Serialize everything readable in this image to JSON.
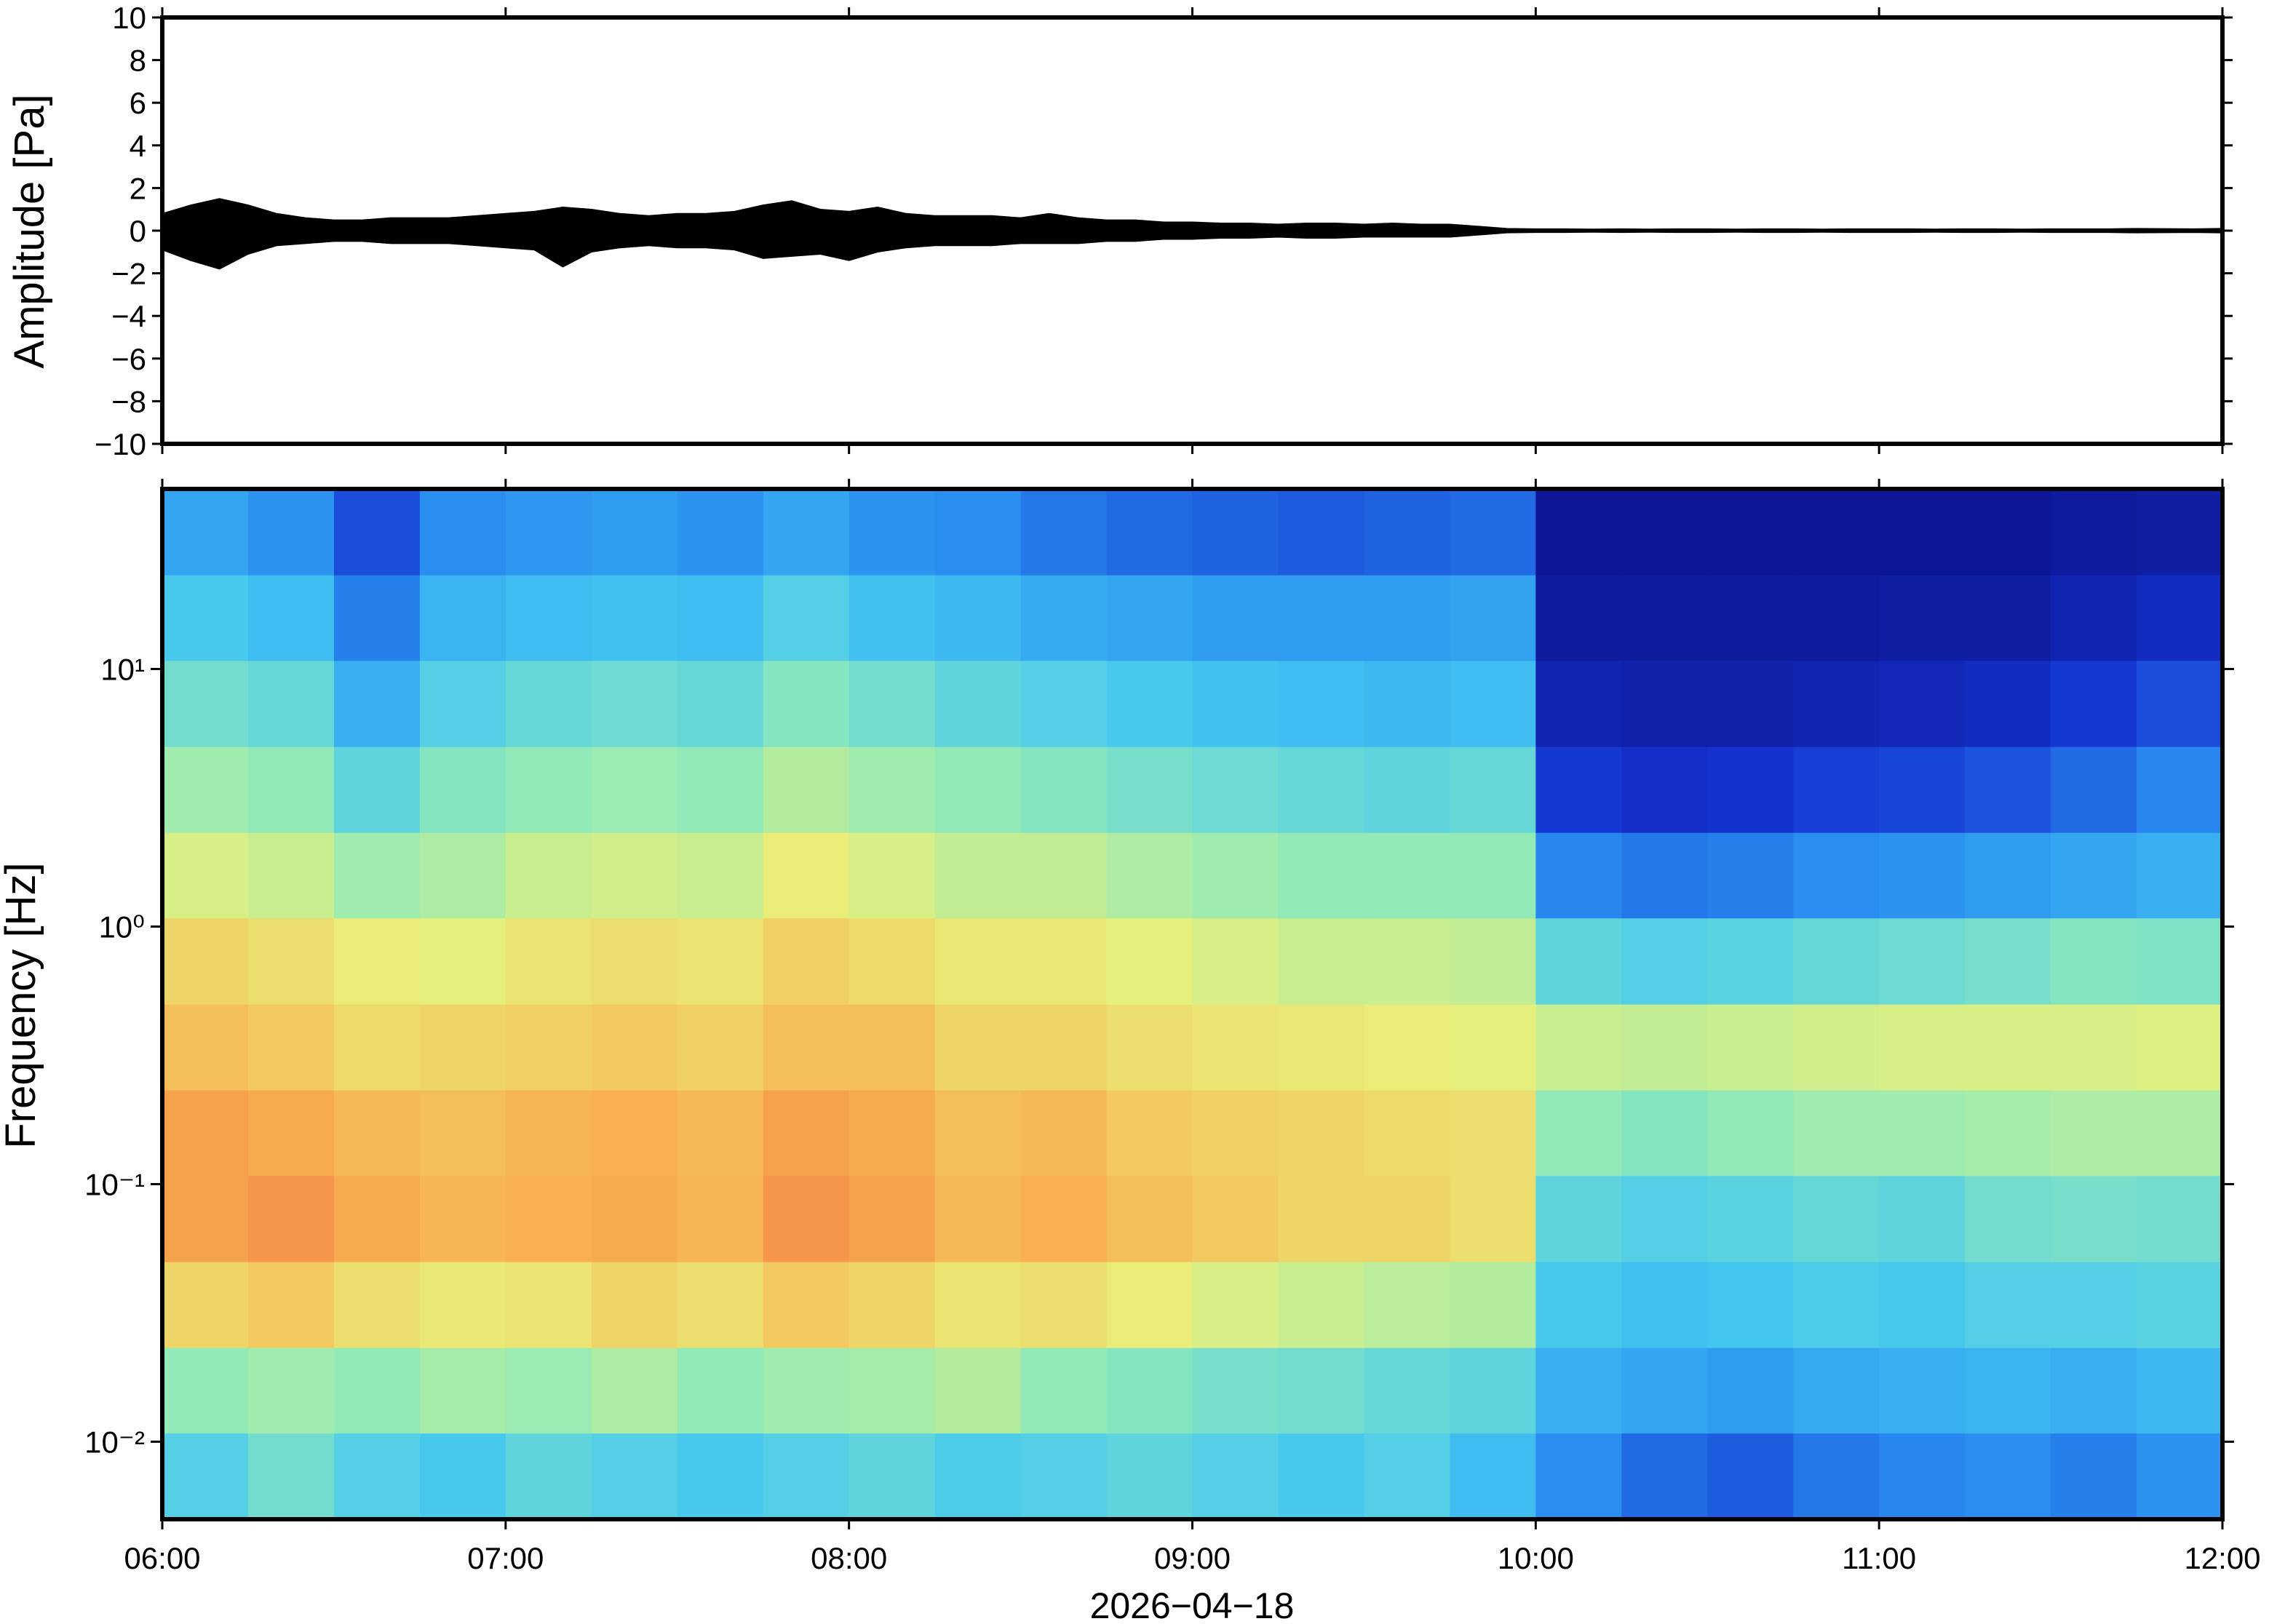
{
  "chart_data": [
    {
      "type": "area",
      "ylabel": "Amplitude [Pa]",
      "color": "#000000",
      "x": [
        0,
        5,
        10,
        15,
        20,
        25,
        30,
        35,
        40,
        45,
        50,
        55,
        60,
        65,
        70,
        75,
        80,
        85,
        90,
        95,
        100,
        105,
        110,
        115,
        120,
        125,
        130,
        135,
        140,
        145,
        150,
        155,
        160,
        165,
        170,
        175,
        180,
        185,
        190,
        195,
        200,
        205,
        210,
        215,
        220,
        225,
        230,
        235,
        240,
        245,
        250,
        255,
        260,
        265,
        270,
        275,
        280,
        285,
        290,
        295,
        300,
        305,
        310,
        315,
        320,
        325,
        330,
        335,
        340,
        345,
        350,
        355,
        360
      ],
      "series": [
        {
          "color": "#000000",
          "values": [
            0.8,
            1.2,
            1.5,
            1.2,
            0.8,
            0.6,
            0.5,
            0.5,
            0.6,
            0.6,
            0.6,
            0.7,
            0.8,
            0.9,
            1.1,
            1.0,
            0.8,
            0.7,
            0.8,
            0.8,
            0.9,
            1.2,
            1.4,
            1.0,
            0.9,
            1.1,
            0.8,
            0.7,
            0.7,
            0.7,
            0.6,
            0.8,
            0.6,
            0.5,
            0.5,
            0.4,
            0.4,
            0.35,
            0.35,
            0.3,
            0.35,
            0.35,
            0.3,
            0.35,
            0.3,
            0.3,
            0.2,
            0.1,
            0.08,
            0.08,
            0.07,
            0.08,
            0.07,
            0.08,
            0.08,
            0.07,
            0.08,
            0.08,
            0.07,
            0.08,
            0.08,
            0.08,
            0.07,
            0.08,
            0.08,
            0.07,
            0.08,
            0.08,
            0.08,
            0.1,
            0.09,
            0.08,
            0.1
          ]
        },
        {
          "color": "#000000",
          "values": [
            -0.9,
            -1.4,
            -1.8,
            -1.1,
            -0.7,
            -0.6,
            -0.5,
            -0.5,
            -0.6,
            -0.6,
            -0.6,
            -0.7,
            -0.8,
            -0.9,
            -1.7,
            -1.0,
            -0.8,
            -0.7,
            -0.8,
            -0.8,
            -0.9,
            -1.3,
            -1.2,
            -1.1,
            -1.4,
            -1.0,
            -0.8,
            -0.7,
            -0.7,
            -0.7,
            -0.6,
            -0.6,
            -0.6,
            -0.5,
            -0.5,
            -0.4,
            -0.4,
            -0.35,
            -0.35,
            -0.3,
            -0.35,
            -0.35,
            -0.3,
            -0.3,
            -0.3,
            -0.3,
            -0.2,
            -0.1,
            -0.08,
            -0.08,
            -0.07,
            -0.08,
            -0.07,
            -0.08,
            -0.08,
            -0.07,
            -0.08,
            -0.08,
            -0.07,
            -0.08,
            -0.08,
            -0.08,
            -0.07,
            -0.08,
            -0.08,
            -0.07,
            -0.08,
            -0.08,
            -0.08,
            -0.1,
            -0.09,
            -0.08,
            -0.1
          ]
        }
      ],
      "xlim": [
        0,
        360
      ],
      "ylim": [
        -10,
        10
      ],
      "yticks": [
        {
          "value": -10,
          "label": "−10"
        },
        {
          "value": -8,
          "label": "−8"
        },
        {
          "value": -6,
          "label": "−6"
        },
        {
          "value": -4,
          "label": "−4"
        },
        {
          "value": -2,
          "label": "−2"
        },
        0,
        2,
        4,
        6,
        8,
        10
      ]
    },
    {
      "type": "heatmap",
      "ylabel": "Frequency [Hz]",
      "xlabel": "2026−04−18",
      "ylog": true,
      "xlim": [
        0,
        360
      ],
      "ylim": [
        0.005,
        50
      ],
      "xticks": [
        {
          "value": 0,
          "label": "06:00"
        },
        {
          "value": 60,
          "label": "07:00"
        },
        {
          "value": 120,
          "label": "08:00"
        },
        {
          "value": 180,
          "label": "09:00"
        },
        {
          "value": 240,
          "label": "10:00"
        },
        {
          "value": 300,
          "label": "11:00"
        },
        {
          "value": 360,
          "label": "12:00"
        }
      ],
      "yticks": [
        {
          "value": 0.01,
          "label": "10⁻²"
        },
        {
          "value": 0.1,
          "label": "10⁻¹"
        },
        {
          "value": 1,
          "label": "10⁰"
        },
        {
          "value": 10,
          "label": "10¹"
        }
      ],
      "x_bins": [
        0,
        15,
        30,
        45,
        60,
        75,
        90,
        105,
        120,
        135,
        150,
        165,
        180,
        195,
        210,
        225,
        240,
        255,
        270,
        285,
        300,
        315,
        330,
        345,
        360
      ],
      "y_bins": [
        0.005,
        0.0108,
        0.0232,
        0.05,
        0.108,
        0.232,
        0.5,
        1.08,
        2.32,
        5,
        10.8,
        23.2,
        50
      ],
      "clim": [
        0,
        10
      ],
      "colormap": [
        "#0a0a78",
        "#1434d2",
        "#2a8ef0",
        "#44c8f0",
        "#92eab8",
        "#e8f07a",
        "#f8b050",
        "#f07040",
        "#c02020"
      ],
      "z": [
        [
          4,
          4.5,
          4,
          3.8,
          4.2,
          4,
          3.8,
          4,
          4.2,
          3.9,
          4,
          4.2,
          4,
          3.8,
          4,
          3.5,
          2.5,
          2,
          1.8,
          2.2,
          2.4,
          2.5,
          2.3,
          2.6
        ],
        [
          5,
          5.2,
          5,
          5.3,
          5.1,
          5.4,
          5,
          5.2,
          5.3,
          5.5,
          5,
          4.8,
          4.6,
          4.5,
          4.3,
          4.2,
          3.2,
          3,
          2.8,
          3.1,
          3.2,
          3.3,
          3.2,
          3.4
        ],
        [
          6.8,
          7,
          6.6,
          6.4,
          6.5,
          6.8,
          6.6,
          7,
          6.8,
          6.5,
          6.6,
          6.3,
          6,
          5.8,
          5.6,
          5.5,
          3.8,
          3.6,
          3.7,
          3.9,
          3.8,
          4,
          4,
          4.1
        ],
        [
          7.8,
          8,
          7.6,
          7.4,
          7.5,
          7.6,
          7.4,
          8,
          7.8,
          7.3,
          7.5,
          7.2,
          7,
          6.8,
          6.8,
          6.6,
          4.2,
          4,
          4.1,
          4.3,
          4.2,
          4.5,
          4.6,
          4.5
        ],
        [
          7.8,
          7.6,
          7.3,
          7.2,
          7.4,
          7.5,
          7.3,
          7.8,
          7.6,
          7.2,
          7.3,
          7,
          6.9,
          6.8,
          6.7,
          6.6,
          5,
          4.8,
          5,
          5.2,
          5.2,
          5.3,
          5.4,
          5.4
        ],
        [
          7.2,
          7,
          6.7,
          6.8,
          6.9,
          7,
          6.9,
          7.2,
          7.2,
          6.8,
          6.8,
          6.6,
          6.5,
          6.4,
          6.3,
          6.2,
          5.8,
          5.7,
          5.8,
          5.9,
          6,
          6,
          6,
          6.1
        ],
        [
          6.8,
          6.6,
          6.3,
          6.2,
          6.5,
          6.6,
          6.5,
          6.9,
          6.7,
          6.4,
          6.4,
          6.2,
          6,
          5.8,
          5.8,
          5.7,
          4.2,
          4,
          4.1,
          4.3,
          4.4,
          4.6,
          4.8,
          4.7
        ],
        [
          6,
          5.8,
          5.2,
          5.4,
          5.8,
          5.9,
          5.8,
          6.3,
          6,
          5.7,
          5.7,
          5.4,
          5.2,
          5,
          5,
          5,
          2.4,
          2.2,
          2.3,
          2.5,
          2.6,
          2.8,
          3,
          3.2
        ],
        [
          5.2,
          5,
          4.2,
          4.8,
          5,
          5.1,
          5,
          5.5,
          5.2,
          5,
          4.8,
          4.6,
          4.4,
          4.3,
          4.2,
          4.3,
          1.3,
          1.1,
          1.2,
          1.4,
          1.5,
          1.7,
          2,
          2.4
        ],
        [
          4.5,
          4.3,
          3.2,
          4,
          4.3,
          4.4,
          4.3,
          4.8,
          4.5,
          4.2,
          4,
          3.8,
          3.6,
          3.5,
          3.4,
          3.5,
          0.8,
          0.7,
          0.7,
          0.8,
          0.9,
          1,
          1.3,
          1.6
        ],
        [
          3.8,
          3.5,
          2.3,
          3.3,
          3.5,
          3.6,
          3.5,
          4,
          3.6,
          3.4,
          3.1,
          3,
          2.8,
          2.8,
          2.8,
          2.9,
          0.5,
          0.5,
          0.5,
          0.5,
          0.6,
          0.6,
          0.8,
          1
        ],
        [
          3,
          2.6,
          1.6,
          2.5,
          2.7,
          2.8,
          2.6,
          3,
          2.6,
          2.5,
          2.2,
          2,
          1.9,
          1.8,
          1.9,
          2,
          0.4,
          0.4,
          0.4,
          0.4,
          0.4,
          0.4,
          0.5,
          0.6
        ]
      ]
    }
  ]
}
